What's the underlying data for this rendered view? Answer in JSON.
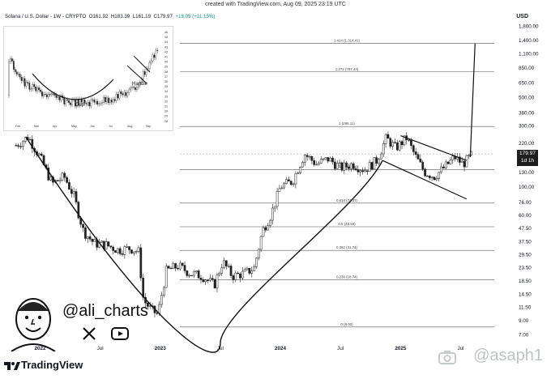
{
  "header": {
    "created_with": "created with TradingView.com, Aug 09, 2025 23:19 UTC",
    "currency": "USD"
  },
  "symbol_info": {
    "name": "Solana / U.S. Dollar - 1W - CRYPTO",
    "open": "O161.92",
    "high": "H183.39",
    "low": "L161.19",
    "close": "C179.97",
    "change": "+18.05 (+11.15%)"
  },
  "price_tag": {
    "price": "179.97",
    "countdown": "1d 1h"
  },
  "branding": {
    "handle": "@ali_charts",
    "platform": "TradingView",
    "watermark": "@asaph1",
    "icons": [
      "x-icon",
      "play-icon",
      "tradingview-logo-icon",
      "camera-icon"
    ]
  },
  "inset": {
    "labels": [
      "Cup",
      "Handle"
    ],
    "x_ticks": [
      "Feb",
      "Mar",
      "Apr",
      "May",
      "Jun",
      "Jul",
      "Aug",
      "Sep"
    ],
    "y_ticks": [
      "46",
      "45",
      "44",
      "43",
      "42",
      "41",
      "40",
      "39",
      "38",
      "37",
      "36",
      "35",
      "34",
      "33",
      "32",
      "31",
      "30",
      "29",
      "28"
    ]
  },
  "chart_data": {
    "type": "candlestick",
    "title": "Solana / U.S. Dollar - 1W - CRYPTO",
    "xlabel": "",
    "ylabel": "",
    "y_scale": "log",
    "y_ticks": [
      "1,800.00",
      "1,400.00",
      "1,100.00",
      "850.00",
      "650.00",
      "500.00",
      "380.00",
      "300.00",
      "220.00",
      "130.00",
      "100.00",
      "76.00",
      "60.00",
      "47.50",
      "37.50",
      "29.50",
      "23.50",
      "18.50",
      "14.50",
      "11.50",
      "9.00",
      "7.00"
    ],
    "x_ticks": [
      "2022",
      "Jul",
      "2023",
      "Jul",
      "2024",
      "Jul",
      "2025",
      "Jul"
    ],
    "fib_levels": [
      {
        "label": "1.414 (1,314.41)",
        "value": 1314.41
      },
      {
        "label": "1.272 (787.43)",
        "value": 787.43
      },
      {
        "label": "1 (295.11)",
        "value": 295.11
      },
      {
        "label": "0.786 (136.00)",
        "value": 136.0
      },
      {
        "label": "0.618 (74.37)",
        "value": 74.37
      },
      {
        "label": "0.5 (48.58)",
        "value": 48.58
      },
      {
        "label": "0.382 (31.74)",
        "value": 31.74
      },
      {
        "label": "0.236 (18.74)",
        "value": 18.74
      },
      {
        "label": "0 (8.00)",
        "value": 8.0
      }
    ],
    "series": [
      {
        "values": [
          {
            "t": 2021.8,
            "p": 210
          },
          {
            "t": 2021.9,
            "p": 245
          },
          {
            "t": 2022.0,
            "p": 170
          },
          {
            "t": 2022.1,
            "p": 105
          },
          {
            "t": 2022.2,
            "p": 120
          },
          {
            "t": 2022.28,
            "p": 85
          },
          {
            "t": 2022.36,
            "p": 45
          },
          {
            "t": 2022.45,
            "p": 36
          },
          {
            "t": 2022.55,
            "p": 35
          },
          {
            "t": 2022.65,
            "p": 32
          },
          {
            "t": 2022.75,
            "p": 33
          },
          {
            "t": 2022.82,
            "p": 31
          },
          {
            "t": 2022.86,
            "p": 13
          },
          {
            "t": 2022.92,
            "p": 11
          },
          {
            "t": 2022.98,
            "p": 10
          },
          {
            "t": 2023.05,
            "p": 22
          },
          {
            "t": 2023.15,
            "p": 24
          },
          {
            "t": 2023.25,
            "p": 21
          },
          {
            "t": 2023.35,
            "p": 20
          },
          {
            "t": 2023.45,
            "p": 17
          },
          {
            "t": 2023.52,
            "p": 26
          },
          {
            "t": 2023.6,
            "p": 20
          },
          {
            "t": 2023.7,
            "p": 21
          },
          {
            "t": 2023.78,
            "p": 23
          },
          {
            "t": 2023.85,
            "p": 45
          },
          {
            "t": 2023.92,
            "p": 60
          },
          {
            "t": 2024.0,
            "p": 100
          },
          {
            "t": 2024.1,
            "p": 110
          },
          {
            "t": 2024.2,
            "p": 180
          },
          {
            "t": 2024.3,
            "p": 150
          },
          {
            "t": 2024.4,
            "p": 165
          },
          {
            "t": 2024.5,
            "p": 140
          },
          {
            "t": 2024.6,
            "p": 150
          },
          {
            "t": 2024.7,
            "p": 135
          },
          {
            "t": 2024.8,
            "p": 160
          },
          {
            "t": 2024.88,
            "p": 240
          },
          {
            "t": 2024.96,
            "p": 200
          },
          {
            "t": 2025.05,
            "p": 240
          },
          {
            "t": 2025.12,
            "p": 175
          },
          {
            "t": 2025.2,
            "p": 130
          },
          {
            "t": 2025.28,
            "p": 120
          },
          {
            "t": 2025.36,
            "p": 140
          },
          {
            "t": 2025.45,
            "p": 170
          },
          {
            "t": 2025.52,
            "p": 150
          },
          {
            "t": 2025.6,
            "p": 180
          }
        ]
      }
    ],
    "annotations": {
      "cup_curve": [
        {
          "t": 2021.88,
          "p": 245
        },
        {
          "t": 2022.9,
          "p": 8.0
        },
        {
          "t": 2023.5,
          "p": 6.0
        },
        {
          "t": 2024.85,
          "p": 160
        }
      ],
      "handle_upper": [
        {
          "t": 2025.0,
          "p": 250
        },
        {
          "t": 2025.55,
          "p": 160
        }
      ],
      "handle_lower": [
        {
          "t": 2024.85,
          "p": 160
        },
        {
          "t": 2025.55,
          "p": 80
        }
      ],
      "target_arrow": [
        {
          "t": 2025.58,
          "p": 170
        },
        {
          "t": 2025.62,
          "p": 1314.41
        }
      ]
    }
  }
}
